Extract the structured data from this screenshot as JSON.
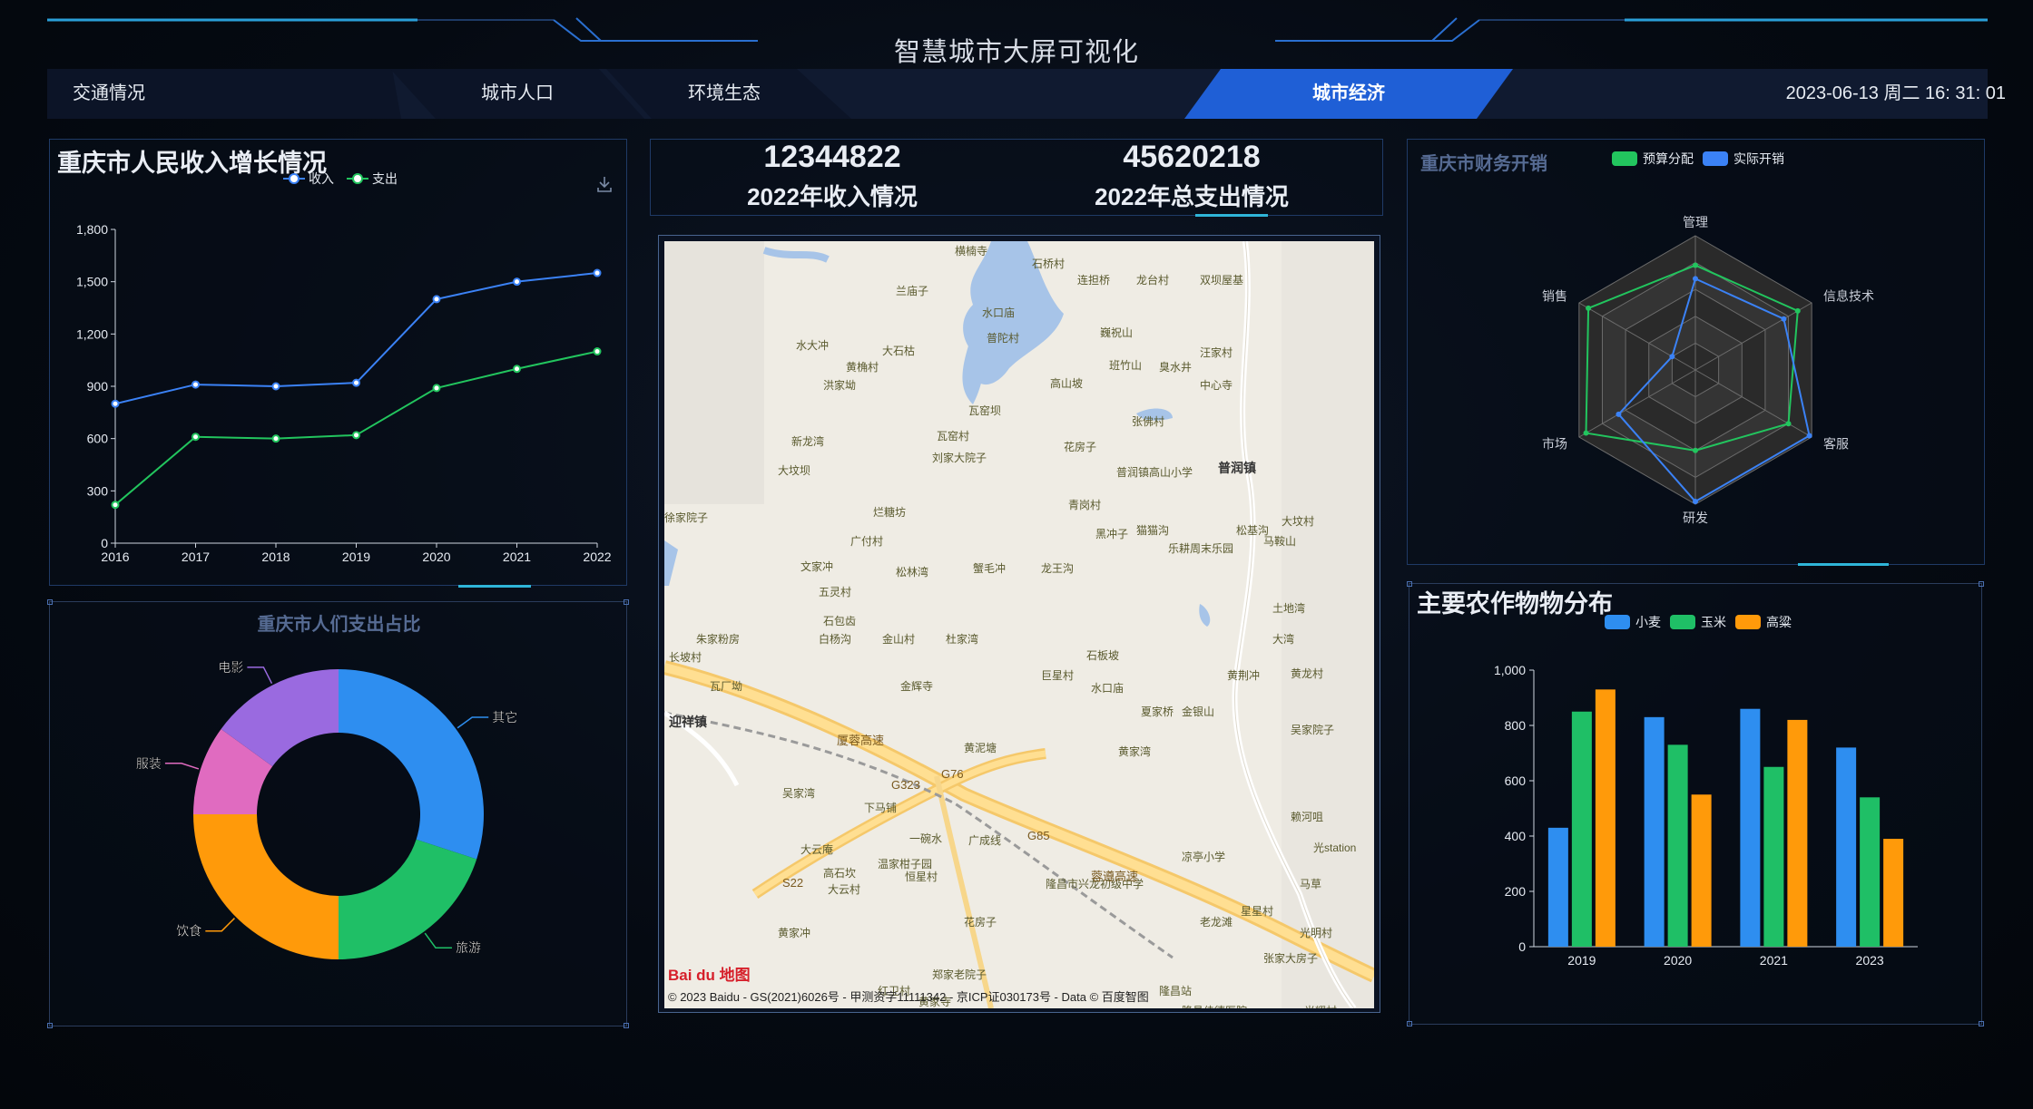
{
  "header": {
    "title": "智慧城市大屏可视化",
    "tabs": [
      {
        "label": "交通情况"
      },
      {
        "label": "城市人口"
      },
      {
        "label": "环境生态"
      },
      {
        "label": "城市经济"
      }
    ],
    "datetime": "2023-06-13 周二 16: 31: 01"
  },
  "income_chart": {
    "title": "重庆市人民收入增长情况",
    "download_icon": "download-icon",
    "chart_data": {
      "type": "line",
      "x": [
        "2016",
        "2017",
        "2018",
        "2019",
        "2020",
        "2021",
        "2022"
      ],
      "series": [
        {
          "name": "收入",
          "color": "#3b82f6",
          "values": [
            800,
            910,
            900,
            920,
            1400,
            1500,
            1550
          ]
        },
        {
          "name": "支出",
          "color": "#22c55e",
          "values": [
            220,
            610,
            600,
            620,
            890,
            1000,
            1100
          ]
        }
      ],
      "yticks": [
        "0",
        "300",
        "600",
        "900",
        "1,200",
        "1,500",
        "1,800"
      ],
      "ylim": [
        0,
        1800
      ]
    }
  },
  "stats": {
    "income_value": "12344822",
    "income_label": "2022年收入情况",
    "expense_value": "45620218",
    "expense_label": "2022年总支出情况"
  },
  "spend_chart": {
    "title": "重庆市人们支出占比",
    "chart_data": {
      "type": "pie",
      "slices": [
        {
          "name": "其它",
          "value": 30,
          "color": "#2e8ef0"
        },
        {
          "name": "旅游",
          "value": 20,
          "color": "#1fbf66"
        },
        {
          "name": "饮食",
          "value": 25,
          "color": "#ff9a0a"
        },
        {
          "name": "服装",
          "value": 10,
          "color": "#e06bc0"
        },
        {
          "name": "电影",
          "value": 15,
          "color": "#9a6ae0"
        }
      ]
    }
  },
  "finance_chart": {
    "title": "重庆市财务开销",
    "chart_data": {
      "type": "radar",
      "indicators": [
        "管理",
        "信息技术",
        "客服",
        "研发",
        "市场",
        "销售"
      ],
      "series": [
        {
          "name": "预算分配",
          "color": "#22c55e",
          "values": [
            0.78,
            0.88,
            0.8,
            0.6,
            0.94,
            0.92
          ]
        },
        {
          "name": "实际开销",
          "color": "#3b82f6",
          "values": [
            0.68,
            0.76,
            0.98,
            0.98,
            0.66,
            0.2
          ]
        }
      ]
    }
  },
  "crop_chart": {
    "title": "主要农作物物分布",
    "chart_data": {
      "type": "bar",
      "categories": [
        "2019",
        "2020",
        "2021",
        "2023"
      ],
      "series": [
        {
          "name": "小麦",
          "color": "#2e8ef0",
          "values": [
            430,
            830,
            860,
            720
          ]
        },
        {
          "name": "玉米",
          "color": "#1fbf66",
          "values": [
            850,
            730,
            650,
            540
          ]
        },
        {
          "name": "高粱",
          "color": "#ff9a0a",
          "values": [
            930,
            550,
            820,
            390
          ]
        }
      ],
      "yticks": [
        "0",
        "200",
        "400",
        "600",
        "800",
        "1,000"
      ],
      "ylim": [
        0,
        1000
      ]
    }
  },
  "map": {
    "baidu_logo": "Bai du 地图",
    "copyright": "© 2023 Baidu - GS(2021)6026号 - 甲测资字11111342 - 京ICP证030173号 - Data © 百度智图",
    "labels": [
      "横楠寺",
      "石桥村",
      "连担桥",
      "龙台村",
      "双坝屋基",
      "兰庙子",
      "水口庙",
      "巍祝山",
      "普陀村",
      "水大冲",
      "大石枯",
      "黄桷村",
      "班竹山",
      "臭水井",
      "汪家村",
      "洪家坳",
      "高山坡",
      "中心寺",
      "瓦窑坝",
      "张佛村",
      "新龙湾",
      "瓦窑村",
      "刘家大院子",
      "花房子",
      "大坟坝",
      "普润镇高山小学",
      "普润镇",
      "青岗村",
      "烂糖坊",
      "徐家院子",
      "广付村",
      "黑冲子",
      "猫猫沟",
      "松基沟",
      "大坟村",
      "马鞍山",
      "文家冲",
      "松林湾",
      "蟹毛冲",
      "龙王沟",
      "乐耕周末乐园",
      "五灵村",
      "土地湾",
      "石包齿",
      "白杨沟",
      "金山村",
      "杜家湾",
      "朱家粉房",
      "大湾",
      "长坡村",
      "石板坡",
      "巨星村",
      "黄荆冲",
      "黄龙村",
      "瓦厂坳",
      "金辉寺",
      "水口庙",
      "迎祥镇",
      "夏家桥",
      "金银山",
      "吴家院子",
      "黄泥塘",
      "黄家湾",
      "吴家湾",
      "下马铺",
      "一碗水",
      "大云庵",
      "广成线",
      "温家柑子园",
      "凉亭小学",
      "赖河咀",
      "光station",
      "高石坎",
      "恒星村",
      "隆昌市兴龙初级中学",
      "马草",
      "大云村",
      "星星村",
      "老龙滩",
      "花房子",
      "黄家冲",
      "光明村",
      "张家大房子",
      "郑家老院子",
      "红卫村",
      "黄家寺",
      "隆昌站",
      "隆昌佳德医院",
      "光耀村",
      "蓉遵高速",
      "厦蓉高速",
      "G76",
      "G323",
      "G85",
      "S22"
    ]
  }
}
